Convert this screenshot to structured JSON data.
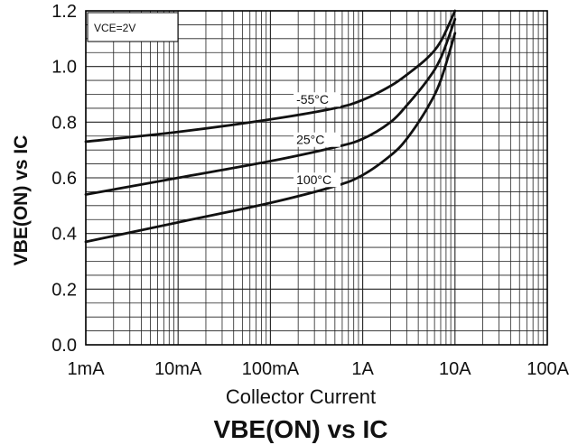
{
  "chart_data": {
    "type": "line",
    "title": "VBE(ON) vs IC",
    "xlabel": "Collector Current",
    "ylabel": "VBE(ON) vs IC",
    "x_scale": "log",
    "x_unit": "A",
    "xlim": [
      0.001,
      100
    ],
    "ylim": [
      0,
      1.2
    ],
    "x_ticks": [
      {
        "value": 0.001,
        "label": "1mA"
      },
      {
        "value": 0.01,
        "label": "10mA"
      },
      {
        "value": 0.1,
        "label": "100mA"
      },
      {
        "value": 1,
        "label": "1A"
      },
      {
        "value": 10,
        "label": "10A"
      },
      {
        "value": 100,
        "label": "100A"
      }
    ],
    "y_ticks": [
      {
        "value": 0,
        "label": "0.0"
      },
      {
        "value": 0.2,
        "label": "0.2"
      },
      {
        "value": 0.4,
        "label": "0.4"
      },
      {
        "value": 0.6,
        "label": "0.6"
      },
      {
        "value": 0.8,
        "label": "0.8"
      },
      {
        "value": 1.0,
        "label": "1.0"
      },
      {
        "value": 1.2,
        "label": "1.2"
      }
    ],
    "grid": true,
    "annotation": "VCE=2V",
    "series": [
      {
        "name": "-55°C",
        "x": [
          0.001,
          0.01,
          0.1,
          0.5,
          1,
          2,
          3,
          5,
          7,
          10
        ],
        "y": [
          0.73,
          0.765,
          0.81,
          0.85,
          0.88,
          0.93,
          0.97,
          1.03,
          1.09,
          1.2
        ]
      },
      {
        "name": "25°C",
        "x": [
          0.001,
          0.01,
          0.1,
          0.5,
          1,
          2,
          3,
          5,
          7,
          10
        ],
        "y": [
          0.54,
          0.6,
          0.66,
          0.71,
          0.74,
          0.8,
          0.86,
          0.95,
          1.03,
          1.17
        ]
      },
      {
        "name": "100°C",
        "x": [
          0.001,
          0.01,
          0.1,
          0.5,
          1,
          2,
          3,
          5,
          7,
          10
        ],
        "y": [
          0.37,
          0.44,
          0.51,
          0.57,
          0.61,
          0.68,
          0.74,
          0.85,
          0.95,
          1.12
        ]
      }
    ]
  }
}
